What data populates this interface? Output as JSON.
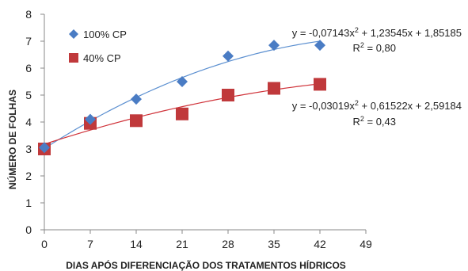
{
  "chart_data": {
    "type": "scatter",
    "title": "",
    "xlabel": "DIAS APÓS DIFERENCIAÇÃO  DOS TRATAMENTOS  HÍDRICOS",
    "ylabel": "NÚMERO DE FOLHAS",
    "xlim": [
      0,
      49
    ],
    "ylim": [
      0,
      8
    ],
    "xticks": [
      0,
      7,
      14,
      21,
      28,
      35,
      42,
      49
    ],
    "yticks": [
      0,
      1,
      2,
      3,
      4,
      5,
      6,
      7,
      8
    ],
    "grid": false,
    "legend_position": "top-left",
    "series": [
      {
        "name": "100% CP",
        "marker": "diamond",
        "color": "#4a7cc4",
        "trend_color": "#5b8fd0",
        "x": [
          0,
          7,
          14,
          21,
          28,
          35,
          42
        ],
        "y": [
          3.05,
          4.1,
          4.85,
          5.5,
          6.45,
          6.85,
          6.85
        ],
        "fit": {
          "a": -0.07143,
          "b": 1.23545,
          "c": 1.85185,
          "scale": 7
        },
        "equation_prefix": "y = -0,07143x",
        "equation_suffix": " + 1,23545x + 1,85185",
        "r2_label": "R",
        "r2_value": " = 0,80"
      },
      {
        "name": "40% CP",
        "marker": "square",
        "color": "#c0393b",
        "trend_color": "#d0333a",
        "x": [
          0,
          7,
          14,
          21,
          28,
          35,
          42
        ],
        "y": [
          3.0,
          3.95,
          4.05,
          4.3,
          5.0,
          5.25,
          5.4
        ],
        "fit": {
          "a": -0.03019,
          "b": 0.61522,
          "c": 2.59184,
          "scale": 7
        },
        "equation_prefix": "y = -0,03019x",
        "equation_suffix": " + 0,61522x + 2,59184",
        "r2_label": "R",
        "r2_value": " = 0,43"
      }
    ]
  }
}
